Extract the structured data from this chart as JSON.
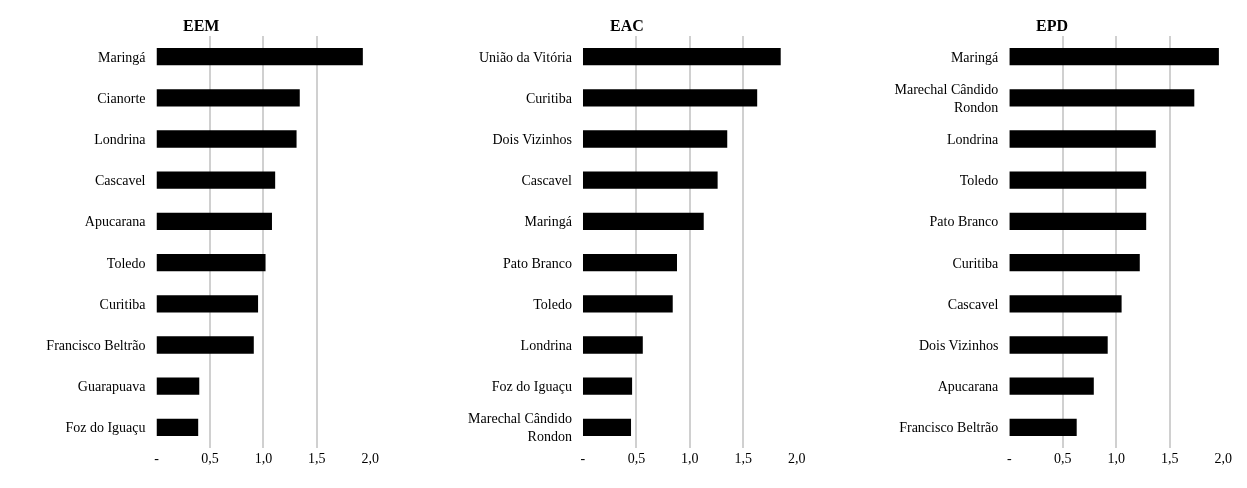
{
  "chart_data": [
    {
      "type": "bar",
      "orientation": "horizontal",
      "title": "EEM",
      "categories": [
        "Maringá",
        "Cianorte",
        "Londrina",
        "Cascavel",
        "Apucarana",
        "Toledo",
        "Curitiba",
        "Francisco Beltrão",
        "Guarapuava",
        "Foz do Iguaçu"
      ],
      "values": [
        1.93,
        1.34,
        1.31,
        1.11,
        1.08,
        1.02,
        0.95,
        0.91,
        0.4,
        0.39
      ],
      "color": "#000000",
      "xlim": [
        0,
        2
      ],
      "xticks": [
        {
          "value": 0,
          "label": "-"
        },
        {
          "value": 0.5,
          "label": "0,5"
        },
        {
          "value": 1.0,
          "label": "1,0"
        },
        {
          "value": 1.5,
          "label": "1,5"
        },
        {
          "value": 2.0,
          "label": "2,0"
        }
      ],
      "grid": "x"
    },
    {
      "type": "bar",
      "orientation": "horizontal",
      "title": "EAC",
      "categories": [
        "União da Vitória",
        "Curitiba",
        "Dois Vizinhos",
        "Cascavel",
        "Maringá",
        "Pato Branco",
        "Toledo",
        "Londrina",
        "Foz do Iguaçu",
        "Marechal Cândido Rondon"
      ],
      "values": [
        1.85,
        1.63,
        1.35,
        1.26,
        1.13,
        0.88,
        0.84,
        0.56,
        0.46,
        0.45
      ],
      "color": "#000000",
      "xlim": [
        0,
        2
      ],
      "xticks": [
        {
          "value": 0,
          "label": "-"
        },
        {
          "value": 0.5,
          "label": "0,5"
        },
        {
          "value": 1.0,
          "label": "1,0"
        },
        {
          "value": 1.5,
          "label": "1,5"
        },
        {
          "value": 2.0,
          "label": "2,0"
        }
      ],
      "grid": "x"
    },
    {
      "type": "bar",
      "orientation": "horizontal",
      "title": "EPD",
      "categories": [
        "Maringá",
        "Marechal Cândido Rondon",
        "Londrina",
        "Toledo",
        "Pato Branco",
        "Curitiba",
        "Cascavel",
        "Dois Vizinhos",
        "Apucarana",
        "Francisco Beltrão"
      ],
      "values": [
        1.96,
        1.73,
        1.37,
        1.28,
        1.28,
        1.22,
        1.05,
        0.92,
        0.79,
        0.63
      ],
      "color": "#000000",
      "xlim": [
        0,
        2
      ],
      "xticks": [
        {
          "value": 0,
          "label": "-"
        },
        {
          "value": 0.5,
          "label": "0,5"
        },
        {
          "value": 1.0,
          "label": "1,0"
        },
        {
          "value": 1.5,
          "label": "1,5"
        },
        {
          "value": 2.0,
          "label": "2,0"
        }
      ],
      "grid": "x"
    }
  ]
}
